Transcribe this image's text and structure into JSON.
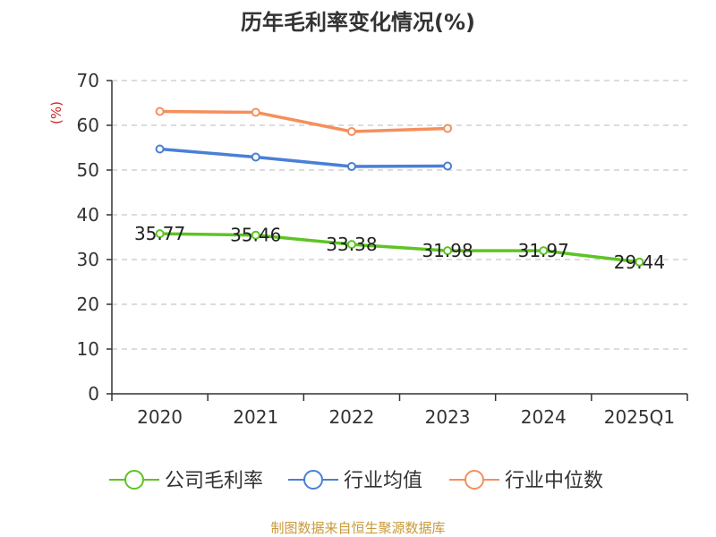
{
  "chart_data": {
    "type": "line",
    "title": "历年毛利率变化情况(%)",
    "ylabel": "(%)",
    "xlabel": "",
    "ylim": [
      0,
      70
    ],
    "yticks": [
      0,
      10,
      20,
      30,
      40,
      50,
      60,
      70
    ],
    "categories": [
      "2020",
      "2021",
      "2022",
      "2023",
      "2024",
      "2025Q1"
    ],
    "grid": true,
    "legend_position": "bottom",
    "series": [
      {
        "name": "公司毛利率",
        "color": "#5ec424",
        "values": [
          35.77,
          35.46,
          33.38,
          31.98,
          31.97,
          29.44
        ],
        "labels": [
          "35.77",
          "35.46",
          "33.38",
          "31.98",
          "31.97",
          "29.44"
        ]
      },
      {
        "name": "行业均值",
        "color": "#4a7fd6",
        "values": [
          54.7,
          52.9,
          50.8,
          50.9,
          null,
          null
        ]
      },
      {
        "name": "行业中位数",
        "color": "#f58f5c",
        "values": [
          63.1,
          62.9,
          58.6,
          59.3,
          null,
          null
        ]
      }
    ]
  },
  "colors": {
    "axis": "#333333",
    "grid": "#c8c8c8",
    "ylabel": "#cc2222",
    "source": "#c89a3a"
  },
  "source_text": "制图数据来自恒生聚源数据库"
}
